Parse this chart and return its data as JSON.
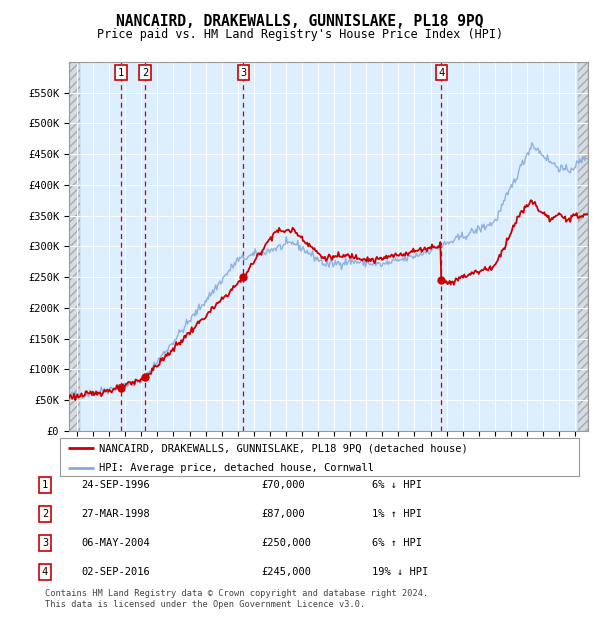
{
  "title": "NANCAIRD, DRAKEWALLS, GUNNISLAKE, PL18 9PQ",
  "subtitle": "Price paid vs. HM Land Registry's House Price Index (HPI)",
  "legend_line1": "NANCAIRD, DRAKEWALLS, GUNNISLAKE, PL18 9PQ (detached house)",
  "legend_line2": "HPI: Average price, detached house, Cornwall",
  "table_rows": [
    [
      "1",
      "24-SEP-1996",
      "£70,000",
      "6% ↓ HPI"
    ],
    [
      "2",
      "27-MAR-1998",
      "£87,000",
      "1% ↑ HPI"
    ],
    [
      "3",
      "06-MAY-2004",
      "£250,000",
      "6% ↑ HPI"
    ],
    [
      "4",
      "02-SEP-2016",
      "£245,000",
      "19% ↓ HPI"
    ]
  ],
  "footer": "Contains HM Land Registry data © Crown copyright and database right 2024.\nThis data is licensed under the Open Government Licence v3.0.",
  "hpi_color": "#88aadd",
  "price_color": "#cc0000",
  "sale_marker_color": "#cc0000",
  "vline_color": "#cc0000",
  "bg_plot": "#ddeeff",
  "grid_color": "#ffffff",
  "ylim": [
    0,
    600000
  ],
  "xlim_start": 1993.5,
  "xlim_end": 2025.8,
  "yticks": [
    0,
    50000,
    100000,
    150000,
    200000,
    250000,
    300000,
    350000,
    400000,
    450000,
    500000,
    550000
  ],
  "sale_dates": [
    1996.73,
    1998.24,
    2004.35,
    2016.67
  ],
  "sale_prices": [
    70000,
    87000,
    250000,
    245000
  ],
  "sale_labels": [
    "1",
    "2",
    "3",
    "4"
  ],
  "vline_dates": [
    1996.73,
    1998.24,
    2004.35,
    2016.67
  ],
  "hatch_left_end": 1994.17,
  "hatch_right_start": 2025.17
}
